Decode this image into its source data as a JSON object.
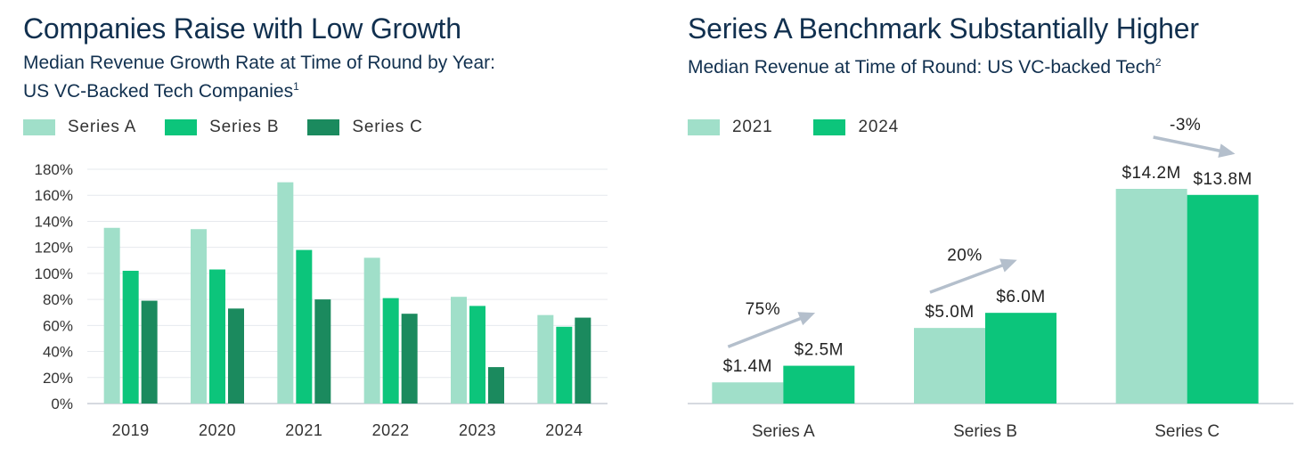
{
  "colors": {
    "light": "#a0dfc9",
    "mid": "#0cc57b",
    "dark": "#1b8a5e",
    "arrow": "#b4bfcc",
    "title": "#11304f"
  },
  "left": {
    "title": "Companies Raise with Low Growth",
    "subtitle_line1": "Median Revenue Growth Rate at Time of Round by Year:",
    "subtitle_line2": "US VC-Backed Tech Companies",
    "footnote": "1",
    "legend": [
      "Series A",
      "Series B",
      "Series C"
    ]
  },
  "right": {
    "title": "Series A Benchmark Substantially Higher",
    "subtitle": "Median Revenue at Time of Round: US VC-backed Tech",
    "footnote": "2",
    "legend": [
      "2021",
      "2024"
    ]
  },
  "chart_data": [
    {
      "type": "bar",
      "categories": [
        "2019",
        "2020",
        "2021",
        "2022",
        "2023",
        "2024"
      ],
      "series": [
        {
          "name": "Series A",
          "values": [
            135,
            134,
            170,
            112,
            82,
            68
          ]
        },
        {
          "name": "Series B",
          "values": [
            102,
            103,
            118,
            81,
            75,
            59
          ]
        },
        {
          "name": "Series C",
          "values": [
            79,
            73,
            80,
            69,
            28,
            66
          ]
        }
      ],
      "yticks": [
        "0%",
        "20%",
        "40%",
        "60%",
        "80%",
        "100%",
        "120%",
        "140%",
        "160%",
        "180%"
      ],
      "ylim": [
        0,
        180
      ],
      "grid": true,
      "legend": "top-left"
    },
    {
      "type": "bar",
      "categories": [
        "Series A",
        "Series B",
        "Series C"
      ],
      "series": [
        {
          "name": "2021",
          "values": [
            1.4,
            5.0,
            14.2
          ],
          "labels": [
            "$1.4M",
            "$5.0M",
            "$14.2M"
          ]
        },
        {
          "name": "2024",
          "values": [
            2.5,
            6.0,
            13.8
          ],
          "labels": [
            "$2.5M",
            "$6.0M",
            "$13.8M"
          ]
        }
      ],
      "changes": [
        "75%",
        "20%",
        "-3%"
      ],
      "legend": "top-left"
    }
  ]
}
